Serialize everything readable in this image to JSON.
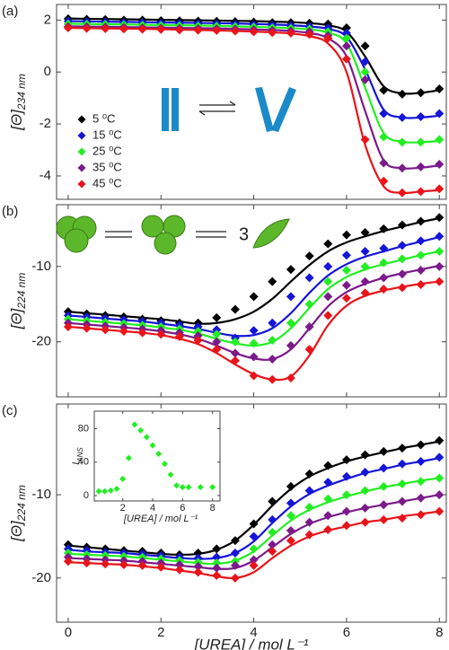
{
  "chart_data": [
    {
      "type": "scatter",
      "label": "(a)",
      "ylabel": "[Θ]",
      "ylabel_sub": "234 nm",
      "xlim": [
        -0.25,
        8.15
      ],
      "ylim": [
        -4.9,
        2.6
      ],
      "xticks": [
        0,
        2,
        4,
        6,
        8
      ],
      "yticks": [
        -4,
        -2,
        0,
        2
      ],
      "legend": "left",
      "x": [
        0,
        0.4,
        0.8,
        1.2,
        1.6,
        2,
        2.4,
        2.8,
        3.2,
        3.6,
        4,
        4.4,
        4.8,
        5.2,
        5.6,
        6,
        6.4,
        6.8,
        7.2,
        7.6,
        8
      ],
      "series": [
        {
          "name": "5 ⁰C",
          "color": "#000000",
          "values": [
            2.05,
            2.03,
            2.02,
            2.0,
            2.0,
            1.98,
            1.97,
            1.96,
            1.95,
            1.94,
            1.92,
            1.9,
            1.9,
            1.88,
            1.85,
            1.7,
            1.0,
            -0.7,
            -0.85,
            -0.8,
            -0.65
          ],
          "fit": [
            2.06,
            2.05,
            2.04,
            2.03,
            2.02,
            2.01,
            2.0,
            1.99,
            1.98,
            1.97,
            1.96,
            1.94,
            1.92,
            1.88,
            1.8,
            1.55,
            0.6,
            -0.55,
            -0.82,
            -0.8,
            -0.7
          ]
        },
        {
          "name": "15 ⁰C",
          "color": "#1515d8",
          "values": [
            1.95,
            1.93,
            1.92,
            1.9,
            1.9,
            1.88,
            1.87,
            1.86,
            1.85,
            1.84,
            1.82,
            1.8,
            1.78,
            1.75,
            1.7,
            1.5,
            0.4,
            -1.6,
            -1.75,
            -1.72,
            -1.6
          ],
          "fit": [
            1.96,
            1.95,
            1.94,
            1.93,
            1.92,
            1.91,
            1.9,
            1.89,
            1.88,
            1.87,
            1.85,
            1.83,
            1.8,
            1.75,
            1.66,
            1.35,
            0.1,
            -1.45,
            -1.75,
            -1.75,
            -1.68
          ]
        },
        {
          "name": "25 ⁰C",
          "color": "#22ee22",
          "values": [
            1.85,
            1.84,
            1.83,
            1.82,
            1.8,
            1.79,
            1.78,
            1.77,
            1.76,
            1.75,
            1.73,
            1.7,
            1.68,
            1.65,
            1.55,
            1.3,
            0.0,
            -2.5,
            -2.7,
            -2.7,
            -2.6
          ],
          "fit": [
            1.86,
            1.85,
            1.84,
            1.83,
            1.82,
            1.81,
            1.8,
            1.79,
            1.78,
            1.76,
            1.74,
            1.72,
            1.69,
            1.64,
            1.52,
            1.1,
            -0.6,
            -2.35,
            -2.68,
            -2.7,
            -2.65
          ]
        },
        {
          "name": "35 ⁰C",
          "color": "#7b1a8a",
          "values": [
            1.75,
            1.74,
            1.73,
            1.72,
            1.7,
            1.69,
            1.68,
            1.67,
            1.66,
            1.65,
            1.63,
            1.6,
            1.58,
            1.55,
            1.4,
            1.0,
            -0.3,
            -3.5,
            -3.7,
            -3.65,
            -3.55
          ],
          "fit": [
            1.76,
            1.75,
            1.74,
            1.73,
            1.72,
            1.71,
            1.7,
            1.69,
            1.68,
            1.66,
            1.64,
            1.62,
            1.58,
            1.5,
            1.3,
            0.6,
            -1.5,
            -3.4,
            -3.7,
            -3.68,
            -3.6
          ]
        },
        {
          "name": "45 ⁰C",
          "color": "#e8141a",
          "values": [
            1.7,
            1.68,
            1.67,
            1.66,
            1.65,
            1.64,
            1.62,
            1.61,
            1.6,
            1.58,
            1.55,
            1.52,
            1.5,
            1.45,
            1.3,
            0.5,
            -2.6,
            -4.2,
            -4.65,
            -4.6,
            -4.5
          ],
          "fit": [
            1.7,
            1.69,
            1.68,
            1.67,
            1.66,
            1.65,
            1.63,
            1.62,
            1.6,
            1.58,
            1.56,
            1.53,
            1.48,
            1.38,
            1.1,
            0.0,
            -2.8,
            -4.4,
            -4.65,
            -4.6,
            -4.55
          ]
        }
      ]
    },
    {
      "type": "scatter",
      "label": "(b)",
      "ylabel": "[Θ]",
      "ylabel_sub": "224 nm",
      "annotation": "3",
      "xlim": [
        -0.25,
        8.15
      ],
      "ylim": [
        -27.3,
        -1.8
      ],
      "xticks": [
        0,
        2,
        4,
        6,
        8
      ],
      "yticks": [
        -20,
        -10
      ],
      "x": [
        0,
        0.4,
        0.8,
        1.2,
        1.6,
        2,
        2.4,
        2.8,
        3.2,
        3.6,
        4,
        4.4,
        4.8,
        5.2,
        5.6,
        6,
        6.4,
        6.8,
        7.2,
        7.6,
        8
      ],
      "series": [
        {
          "color": "#000000",
          "values": [
            -16,
            -16.3,
            -16.5,
            -16.7,
            -17,
            -17.2,
            -17.5,
            -17.5,
            -16.8,
            -15.7,
            -14,
            -12,
            -10.4,
            -8.6,
            -7,
            -5.8,
            -5.5,
            -5,
            -4.5,
            -4,
            -3.5
          ],
          "fit": [
            -16,
            -16.2,
            -16.4,
            -16.6,
            -16.8,
            -17,
            -17.3,
            -17.6,
            -17.5,
            -17,
            -16,
            -14.3,
            -12,
            -9.8,
            -8,
            -6.8,
            -6,
            -5.3,
            -4.7,
            -4.1,
            -3.6
          ]
        },
        {
          "color": "#1515d8",
          "values": [
            -16.5,
            -16.7,
            -16.9,
            -17.1,
            -17.3,
            -17.5,
            -17.8,
            -18,
            -18.4,
            -19.5,
            -18.5,
            -17.5,
            -14,
            -11.5,
            -10,
            -8.5,
            -8,
            -7.6,
            -7.2,
            -6.6,
            -6
          ],
          "fit": [
            -16.5,
            -16.7,
            -16.9,
            -17.1,
            -17.3,
            -17.6,
            -17.9,
            -18.3,
            -18.8,
            -19.2,
            -19.1,
            -18.2,
            -16.2,
            -13.5,
            -11.2,
            -9.7,
            -8.7,
            -8,
            -7.3,
            -6.7,
            -6.1
          ]
        },
        {
          "color": "#22ee22",
          "values": [
            -17,
            -17.2,
            -17.4,
            -17.6,
            -17.8,
            -18,
            -18.3,
            -18.6,
            -19,
            -20,
            -20.2,
            -19.8,
            -17.5,
            -15,
            -12,
            -10.5,
            -10,
            -9.5,
            -9,
            -8.5,
            -8
          ],
          "fit": [
            -17,
            -17.2,
            -17.4,
            -17.6,
            -17.8,
            -18.1,
            -18.4,
            -18.9,
            -19.6,
            -20.2,
            -20.5,
            -20,
            -18.2,
            -15.5,
            -13,
            -11.4,
            -10.4,
            -9.7,
            -9.1,
            -8.5,
            -8
          ]
        },
        {
          "color": "#7b1a8a",
          "values": [
            -17.5,
            -17.7,
            -17.9,
            -18.1,
            -18.3,
            -18.5,
            -18.8,
            -19.2,
            -20,
            -21.5,
            -22,
            -22.3,
            -20.5,
            -18,
            -14,
            -12.5,
            -12,
            -11.5,
            -11,
            -10.5,
            -10
          ],
          "fit": [
            -17.5,
            -17.7,
            -17.9,
            -18.1,
            -18.3,
            -18.6,
            -19,
            -19.6,
            -20.5,
            -21.5,
            -22.2,
            -22.3,
            -21,
            -18.2,
            -15.3,
            -13.4,
            -12.3,
            -11.5,
            -10.9,
            -10.4,
            -9.9
          ]
        },
        {
          "color": "#e8141a",
          "values": [
            -18,
            -18.2,
            -18.4,
            -18.6,
            -18.8,
            -19,
            -19.3,
            -19.8,
            -21,
            -22.5,
            -24.5,
            -25,
            -24.8,
            -21,
            -16.5,
            -14.2,
            -13.5,
            -13,
            -12.8,
            -12.4,
            -12
          ],
          "fit": [
            -18,
            -18.2,
            -18.4,
            -18.6,
            -18.8,
            -19.1,
            -19.6,
            -20.3,
            -21.5,
            -23,
            -24.3,
            -25,
            -24.6,
            -21.8,
            -17.8,
            -15.2,
            -13.9,
            -13.2,
            -12.7,
            -12.3,
            -12
          ]
        }
      ]
    },
    {
      "type": "scatter",
      "label": "(c)",
      "ylabel": "[Θ]",
      "ylabel_sub": "224 nm",
      "xlabel": "[UREA] / mol L⁻¹",
      "xlim": [
        -0.25,
        8.15
      ],
      "ylim": [
        -25.3,
        0.9
      ],
      "xticks": [
        0,
        2,
        4,
        6,
        8
      ],
      "yticks": [
        -20,
        -10
      ],
      "x": [
        0,
        0.4,
        0.8,
        1.2,
        1.6,
        2,
        2.4,
        2.8,
        3.2,
        3.6,
        4,
        4.4,
        4.8,
        5.2,
        5.6,
        6,
        6.4,
        6.8,
        7.2,
        7.6,
        8
      ],
      "series": [
        {
          "color": "#000000",
          "values": [
            -16,
            -16.3,
            -16.5,
            -16.7,
            -16.8,
            -17,
            -17.2,
            -17,
            -16.5,
            -15.5,
            -13.5,
            -10.8,
            -9,
            -7.5,
            -6.5,
            -5.8,
            -5.2,
            -4.8,
            -4.4,
            -4,
            -3.5
          ],
          "fit": [
            -16.1,
            -16.3,
            -16.5,
            -16.7,
            -16.9,
            -17.1,
            -17.2,
            -17.1,
            -16.6,
            -15.5,
            -13.6,
            -11.3,
            -9.3,
            -7.8,
            -6.8,
            -6,
            -5.4,
            -4.9,
            -4.4,
            -4,
            -3.6
          ]
        },
        {
          "color": "#1515d8",
          "values": [
            -16.5,
            -16.7,
            -16.9,
            -17,
            -17.1,
            -17.3,
            -17.5,
            -17.6,
            -17.5,
            -17,
            -15,
            -13,
            -11,
            -9.5,
            -8.5,
            -7.8,
            -7.3,
            -6.8,
            -6.3,
            -6,
            -5.5
          ],
          "fit": [
            -16.6,
            -16.8,
            -16.9,
            -17,
            -17.2,
            -17.4,
            -17.6,
            -17.7,
            -17.6,
            -17,
            -15.6,
            -13.4,
            -11.4,
            -9.9,
            -8.9,
            -8.1,
            -7.4,
            -6.9,
            -6.4,
            -6,
            -5.6
          ]
        },
        {
          "color": "#22ee22",
          "values": [
            -17,
            -17.2,
            -17.3,
            -17.4,
            -17.5,
            -17.7,
            -17.9,
            -18.1,
            -18.2,
            -18,
            -16.5,
            -14.5,
            -12.5,
            -11.5,
            -10.5,
            -10,
            -9.5,
            -9,
            -8.7,
            -8.4,
            -8
          ],
          "fit": [
            -17.1,
            -17.2,
            -17.3,
            -17.4,
            -17.6,
            -17.8,
            -18,
            -18.2,
            -18.3,
            -17.9,
            -16.8,
            -14.9,
            -13.1,
            -11.8,
            -10.9,
            -10.2,
            -9.6,
            -9.1,
            -8.7,
            -8.3,
            -8
          ]
        },
        {
          "color": "#7b1a8a",
          "values": [
            -17.5,
            -17.7,
            -17.8,
            -17.9,
            -18,
            -18.2,
            -18.4,
            -18.6,
            -18.8,
            -18.5,
            -17.8,
            -16,
            -14.3,
            -13.3,
            -12.5,
            -12,
            -11.6,
            -11.2,
            -10.8,
            -10.4,
            -10
          ],
          "fit": [
            -17.6,
            -17.7,
            -17.8,
            -17.9,
            -18.1,
            -18.3,
            -18.5,
            -18.7,
            -18.9,
            -18.8,
            -17.9,
            -16.3,
            -14.7,
            -13.5,
            -12.7,
            -12.1,
            -11.6,
            -11.2,
            -10.8,
            -10.4,
            -10
          ]
        },
        {
          "color": "#e8141a",
          "values": [
            -18,
            -18.2,
            -18.3,
            -18.4,
            -18.5,
            -18.7,
            -19,
            -19.3,
            -19.7,
            -20,
            -18.5,
            -16.8,
            -15.5,
            -14.8,
            -14.2,
            -13.7,
            -13.3,
            -13,
            -12.8,
            -12.4,
            -12
          ],
          "fit": [
            -18.1,
            -18.2,
            -18.3,
            -18.4,
            -18.6,
            -18.8,
            -19.1,
            -19.4,
            -19.8,
            -20,
            -19.3,
            -17.6,
            -16.1,
            -15,
            -14.3,
            -13.8,
            -13.3,
            -13,
            -12.6,
            -12.3,
            -12
          ]
        }
      ]
    },
    {
      "type": "scatter",
      "ylabel": "I",
      "ylabel_sub": "ANS",
      "xlabel": "[UREA] / mol L⁻¹",
      "xlim": [
        0.1,
        8.5
      ],
      "ylim": [
        -6.5,
        101
      ],
      "xticks": [
        2,
        4,
        6,
        8
      ],
      "yticks": [
        0,
        40,
        80
      ],
      "x": [
        0.4,
        0.8,
        1.2,
        1.6,
        2,
        2.4,
        2.8,
        3.2,
        3.6,
        4,
        4.4,
        4.8,
        5.2,
        5.6,
        6,
        6.4,
        7.2,
        8
      ],
      "series": [
        {
          "color": "#22ee22",
          "values": [
            5,
            5,
            6,
            8,
            20,
            45,
            85,
            78,
            70,
            60,
            50,
            38,
            25,
            12,
            10,
            10,
            10,
            10
          ]
        }
      ]
    }
  ]
}
